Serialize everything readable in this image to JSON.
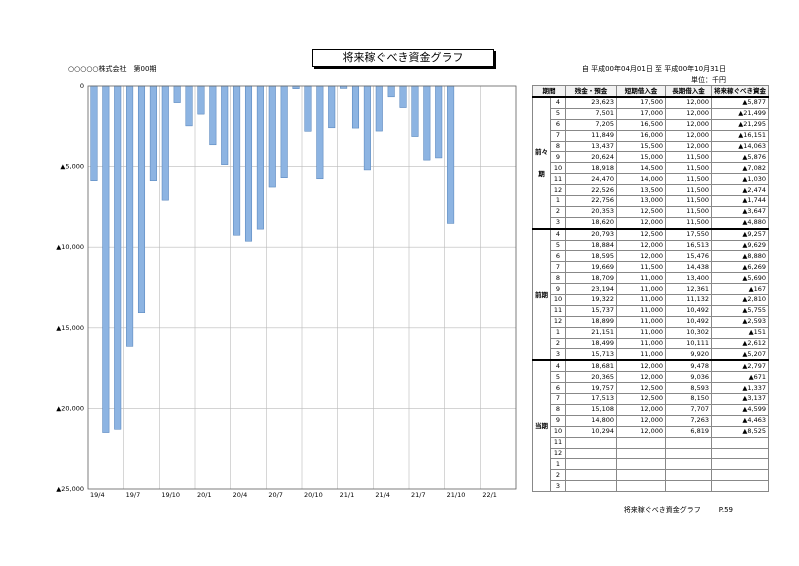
{
  "header": {
    "title": "将来稼ぐべき資金グラフ",
    "company": "○○○○○株式会社　第00期",
    "period": "自 平成00年04月01日 至 平成00年10月31日",
    "unit": "単位：千円"
  },
  "chart_data": {
    "type": "bar",
    "title": "将来稼ぐべき資金グラフ",
    "xlabel": "",
    "ylabel": "",
    "ylim": [
      -25000,
      0
    ],
    "yticks": [
      0,
      -5000,
      -10000,
      -15000,
      -20000,
      -25000
    ],
    "ytick_labels": [
      "0",
      "▲5,000",
      "▲10,000",
      "▲15,000",
      "▲20,000",
      "▲25,000"
    ],
    "x_tick_labels": [
      "19/4",
      "19/7",
      "19/10",
      "20/1",
      "20/4",
      "20/7",
      "20/10",
      "21/1",
      "21/4",
      "21/7",
      "21/10",
      "22/1"
    ],
    "grid": true,
    "bar_color": "#8DB4E2",
    "categories": [
      "19/4",
      "19/5",
      "19/6",
      "19/7",
      "19/8",
      "19/9",
      "19/10",
      "19/11",
      "19/12",
      "20/1",
      "20/2",
      "20/3",
      "20/4",
      "20/5",
      "20/6",
      "20/7",
      "20/8",
      "20/9",
      "20/10",
      "20/11",
      "20/12",
      "21/1",
      "21/2",
      "21/3",
      "21/4",
      "21/5",
      "21/6",
      "21/7",
      "21/8",
      "21/9",
      "21/10",
      "21/11",
      "21/12",
      "22/1",
      "22/2",
      "22/3"
    ],
    "values": [
      -5877,
      -21499,
      -21295,
      -16151,
      -14063,
      -5876,
      -7082,
      -1030,
      -2474,
      -1744,
      -3647,
      -4880,
      -9257,
      -9629,
      -8880,
      -6269,
      -5690,
      -167,
      -2810,
      -5755,
      -2593,
      -151,
      -2612,
      -5207,
      -2797,
      -671,
      -1337,
      -3137,
      -4599,
      -4463,
      -8525,
      null,
      null,
      null,
      null,
      null
    ]
  },
  "table": {
    "headers": [
      "期間",
      "",
      "残金・預金",
      "短期借入金",
      "長期借入金",
      "将来稼ぐべき資金"
    ],
    "groups": [
      {
        "label": "前々期",
        "rows": [
          [
            "4",
            "23,623",
            "17,500",
            "12,000",
            "▲5,877"
          ],
          [
            "5",
            "7,501",
            "17,000",
            "12,000",
            "▲21,499"
          ],
          [
            "6",
            "7,205",
            "16,500",
            "12,000",
            "▲21,295"
          ],
          [
            "7",
            "11,849",
            "16,000",
            "12,000",
            "▲16,151"
          ],
          [
            "8",
            "13,437",
            "15,500",
            "12,000",
            "▲14,063"
          ],
          [
            "9",
            "20,624",
            "15,000",
            "11,500",
            "▲5,876"
          ],
          [
            "10",
            "18,918",
            "14,500",
            "11,500",
            "▲7,082"
          ],
          [
            "11",
            "24,470",
            "14,000",
            "11,500",
            "▲1,030"
          ],
          [
            "12",
            "22,526",
            "13,500",
            "11,500",
            "▲2,474"
          ],
          [
            "1",
            "22,756",
            "13,000",
            "11,500",
            "▲1,744"
          ],
          [
            "2",
            "20,353",
            "12,500",
            "11,500",
            "▲3,647"
          ],
          [
            "3",
            "18,620",
            "12,000",
            "11,500",
            "▲4,880"
          ]
        ]
      },
      {
        "label": "前期",
        "rows": [
          [
            "4",
            "20,793",
            "12,500",
            "17,550",
            "▲9,257"
          ],
          [
            "5",
            "18,884",
            "12,000",
            "16,513",
            "▲9,629"
          ],
          [
            "6",
            "18,595",
            "12,000",
            "15,476",
            "▲8,880"
          ],
          [
            "7",
            "19,669",
            "11,500",
            "14,438",
            "▲6,269"
          ],
          [
            "8",
            "18,709",
            "11,000",
            "13,400",
            "▲5,690"
          ],
          [
            "9",
            "23,194",
            "11,000",
            "12,361",
            "▲167"
          ],
          [
            "10",
            "19,322",
            "11,000",
            "11,132",
            "▲2,810"
          ],
          [
            "11",
            "15,737",
            "11,000",
            "10,492",
            "▲5,755"
          ],
          [
            "12",
            "18,899",
            "11,000",
            "10,492",
            "▲2,593"
          ],
          [
            "1",
            "21,151",
            "11,000",
            "10,302",
            "▲151"
          ],
          [
            "2",
            "18,499",
            "11,000",
            "10,111",
            "▲2,612"
          ],
          [
            "3",
            "15,713",
            "11,000",
            "9,920",
            "▲5,207"
          ]
        ]
      },
      {
        "label": "当期",
        "rows": [
          [
            "4",
            "18,681",
            "12,000",
            "9,478",
            "▲2,797"
          ],
          [
            "5",
            "20,365",
            "12,000",
            "9,036",
            "▲671"
          ],
          [
            "6",
            "19,757",
            "12,500",
            "8,593",
            "▲1,337"
          ],
          [
            "7",
            "17,513",
            "12,500",
            "8,150",
            "▲3,137"
          ],
          [
            "8",
            "15,108",
            "12,000",
            "7,707",
            "▲4,599"
          ],
          [
            "9",
            "14,800",
            "12,000",
            "7,263",
            "▲4,463"
          ],
          [
            "10",
            "10,294",
            "12,000",
            "6,819",
            "▲8,525"
          ],
          [
            "11",
            "",
            "",
            "",
            ""
          ],
          [
            "12",
            "",
            "",
            "",
            ""
          ],
          [
            "1",
            "",
            "",
            "",
            ""
          ],
          [
            "2",
            "",
            "",
            "",
            ""
          ],
          [
            "3",
            "",
            "",
            "",
            ""
          ]
        ]
      }
    ]
  },
  "footer": {
    "title": "将来稼ぐべき資金グラフ",
    "page": "P.59"
  }
}
